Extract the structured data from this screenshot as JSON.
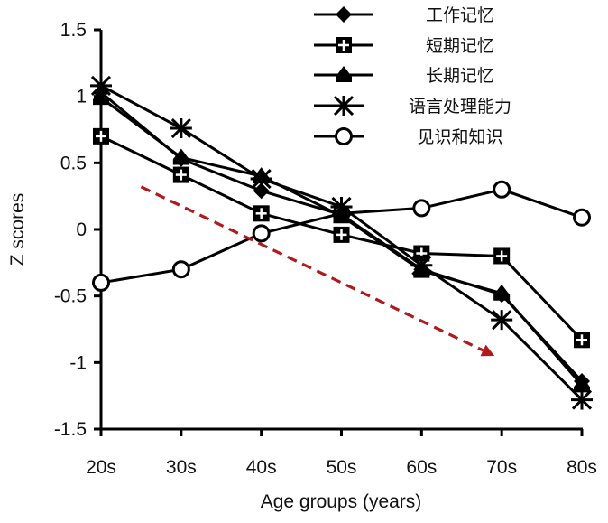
{
  "chart_data": {
    "type": "line",
    "title": "",
    "xlabel": "Age groups (years)",
    "ylabel": "Z scores",
    "categories": [
      "20s",
      "30s",
      "40s",
      "50s",
      "60s",
      "70s",
      "80s"
    ],
    "ylim": [
      -1.5,
      1.5
    ],
    "yticks": [
      1.5,
      1,
      0.5,
      0,
      -0.5,
      -1,
      -1.5
    ],
    "ytick_labels": [
      "1.5",
      "1",
      "0.5",
      "0",
      "-0.5",
      "-1",
      "-1.5"
    ],
    "grid": false,
    "legend_position": "top-right",
    "series": [
      {
        "name": "工作记忆",
        "marker": "diamond",
        "values": [
          1.03,
          0.53,
          0.29,
          0.11,
          -0.3,
          -0.49,
          -1.14
        ]
      },
      {
        "name": "短期记忆",
        "marker": "square-cross",
        "values": [
          0.7,
          0.41,
          0.12,
          -0.04,
          -0.18,
          -0.2,
          -0.83
        ]
      },
      {
        "name": "长期记忆",
        "marker": "triangle",
        "values": [
          0.99,
          0.54,
          0.4,
          0.1,
          -0.31,
          -0.48,
          -1.17
        ]
      },
      {
        "name": "语言处理能力",
        "marker": "asterisk",
        "values": [
          1.08,
          0.76,
          0.38,
          0.17,
          -0.27,
          -0.68,
          -1.28
        ]
      },
      {
        "name": "见识和知识",
        "marker": "open-circle",
        "values": [
          -0.4,
          -0.3,
          -0.03,
          0.12,
          0.16,
          0.3,
          0.09
        ]
      }
    ],
    "annotations": [
      {
        "type": "dashed-arrow",
        "description": "declining trend",
        "from": {
          "x": "25s",
          "y": 0.32
        },
        "to": {
          "x": "70s",
          "y": -0.95
        },
        "color": "#b01a1c"
      }
    ]
  }
}
